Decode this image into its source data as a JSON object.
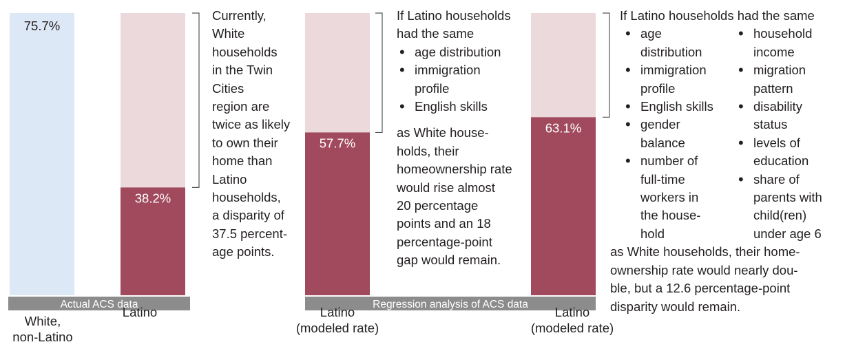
{
  "chart_data": {
    "type": "bar",
    "categories": [
      "White, non-Latino",
      "Latino",
      "Latino (modeled rate)",
      "Latino (modeled rate)"
    ],
    "values": [
      75.7,
      38.2,
      57.7,
      63.1
    ],
    "value_labels": [
      "75.7%",
      "38.2%",
      "57.7%",
      "63.1%"
    ],
    "category_label_lines": [
      [
        "White,",
        "non-Latino"
      ],
      [
        "Latino"
      ],
      [
        "Latino",
        "(modeled rate)"
      ],
      [
        "Latino",
        "(modeled rate)"
      ]
    ],
    "ylim": [
      0,
      100
    ],
    "grid": false,
    "colors": {
      "white_bar": "#dce8f6",
      "latino_bar": "#a14a5d",
      "remainder": "#ecd9dc",
      "group_bar": "#8c8c8c",
      "text": "#231f20",
      "label_on_bar": "#ffffff"
    },
    "groups": [
      {
        "label": "Actual ACS data"
      },
      {
        "label": "Regression analysis of ACS data"
      }
    ]
  },
  "annotations": {
    "a1": {
      "lines": [
        "Currently,",
        "White",
        "households",
        "in the Twin",
        "Cities",
        "region are",
        "twice as likely",
        "to own their",
        "home than",
        "Latino",
        "households,",
        "a disparity of",
        "37.5 percent-",
        "age points."
      ]
    },
    "a2": {
      "intro": [
        "If Latino households",
        "had the same"
      ],
      "bullets": [
        [
          "age distribution"
        ],
        [
          "immigration",
          "profile"
        ],
        [
          "English skills"
        ]
      ],
      "outro": [
        "as White house-",
        "holds, their",
        "homeownership rate",
        "would rise almost",
        "20 percentage",
        "points and an 18",
        "percentage-point",
        "gap would remain."
      ]
    },
    "a3": {
      "intro": "If Latino households had the same",
      "bullets_left": [
        [
          "age",
          "distribution"
        ],
        [
          "immigration",
          "profile"
        ],
        [
          "English skills"
        ],
        [
          "gender",
          "balance"
        ],
        [
          "number of",
          "full-time",
          "workers in",
          "the house-",
          "hold"
        ]
      ],
      "bullets_right": [
        [
          "household",
          "income"
        ],
        [
          "migration",
          "pattern"
        ],
        [
          "disability",
          "status"
        ],
        [
          "levels of",
          "education"
        ],
        [
          "share of",
          "parents with",
          "child(ren)",
          "under age 6"
        ]
      ],
      "outro": [
        "as White households, their home-",
        "ownership rate would nearly dou-",
        "ble, but a 12.6 percentage-point",
        "disparity would remain."
      ]
    }
  }
}
